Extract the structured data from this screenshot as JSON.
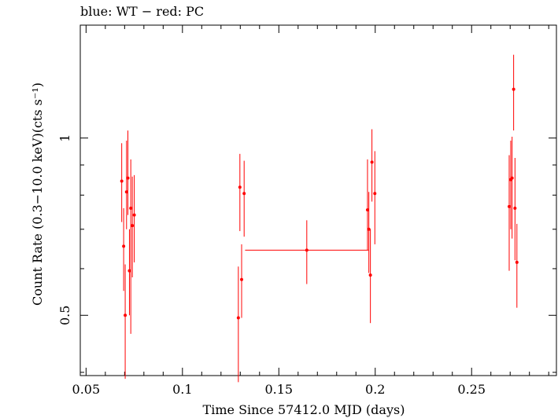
{
  "chart_data": {
    "type": "scatter",
    "title": "blue: WT − red: PC",
    "xlabel": "Time Since 57412.0 MJD (days)",
    "ylabel": "Count Rate (0.3−10.0 keV)(cts s⁻¹)",
    "xlim": [
      0.047,
      0.294
    ],
    "ylim": [
      0.395,
      1.555
    ],
    "yscale": "log",
    "xticks": [
      0.05,
      0.1,
      0.15,
      0.2,
      0.25
    ],
    "xtick_labels": [
      "0.05",
      "0.1",
      "0.15",
      "0.2",
      "0.25"
    ],
    "yticks": [
      0.5,
      1
    ],
    "ytick_labels": [
      "0.5",
      "1"
    ],
    "grid": false,
    "series": [
      {
        "color": "#ff0000",
        "points": [
          {
            "x": 0.0685,
            "y": 0.845,
            "ylo": 0.72,
            "yhi": 0.98
          },
          {
            "x": 0.0695,
            "y": 0.655,
            "ylo": 0.55,
            "yhi": 0.76
          },
          {
            "x": 0.0703,
            "y": 0.5,
            "ylo": 0.39,
            "yhi": 0.61
          },
          {
            "x": 0.071,
            "y": 0.81,
            "ylo": 0.7,
            "yhi": 0.99
          },
          {
            "x": 0.0717,
            "y": 0.855,
            "ylo": 0.74,
            "yhi": 1.03
          },
          {
            "x": 0.0725,
            "y": 0.595,
            "ylo": 0.5,
            "yhi": 0.7
          },
          {
            "x": 0.0732,
            "y": 0.76,
            "ylo": 0.465,
            "yhi": 0.92
          },
          {
            "x": 0.074,
            "y": 0.71,
            "ylo": 0.58,
            "yhi": 0.86
          },
          {
            "x": 0.075,
            "y": 0.74,
            "ylo": 0.615,
            "yhi": 0.865
          },
          {
            "x": 0.129,
            "y": 0.495,
            "ylo": 0.385,
            "yhi": 0.605
          },
          {
            "x": 0.1298,
            "y": 0.825,
            "ylo": 0.695,
            "yhi": 0.94
          },
          {
            "x": 0.1307,
            "y": 0.575,
            "ylo": 0.495,
            "yhi": 0.66
          },
          {
            "x": 0.132,
            "y": 0.805,
            "ylo": 0.68,
            "yhi": 0.915
          },
          {
            "x": 0.1645,
            "y": 0.645,
            "ylo": 0.565,
            "yhi": 0.725,
            "xlo": 0.1325,
            "xhi": 0.1965
          },
          {
            "x": 0.196,
            "y": 0.755,
            "ylo": 0.645,
            "yhi": 0.92
          },
          {
            "x": 0.1967,
            "y": 0.7,
            "ylo": 0.59,
            "yhi": 0.81
          },
          {
            "x": 0.1975,
            "y": 0.585,
            "ylo": 0.485,
            "yhi": 0.7
          },
          {
            "x": 0.1983,
            "y": 0.91,
            "ylo": 0.78,
            "yhi": 1.035
          },
          {
            "x": 0.1998,
            "y": 0.805,
            "ylo": 0.66,
            "yhi": 0.95
          },
          {
            "x": 0.2695,
            "y": 0.765,
            "ylo": 0.595,
            "yhi": 0.935
          },
          {
            "x": 0.2703,
            "y": 0.85,
            "ylo": 0.7,
            "yhi": 0.99
          },
          {
            "x": 0.271,
            "y": 0.855,
            "ylo": 0.675,
            "yhi": 1.005
          },
          {
            "x": 0.2718,
            "y": 1.21,
            "ylo": 1.03,
            "yhi": 1.385
          },
          {
            "x": 0.2725,
            "y": 0.76,
            "ylo": 0.62,
            "yhi": 0.925
          },
          {
            "x": 0.2735,
            "y": 0.615,
            "ylo": 0.515,
            "yhi": 0.715
          }
        ]
      }
    ]
  }
}
